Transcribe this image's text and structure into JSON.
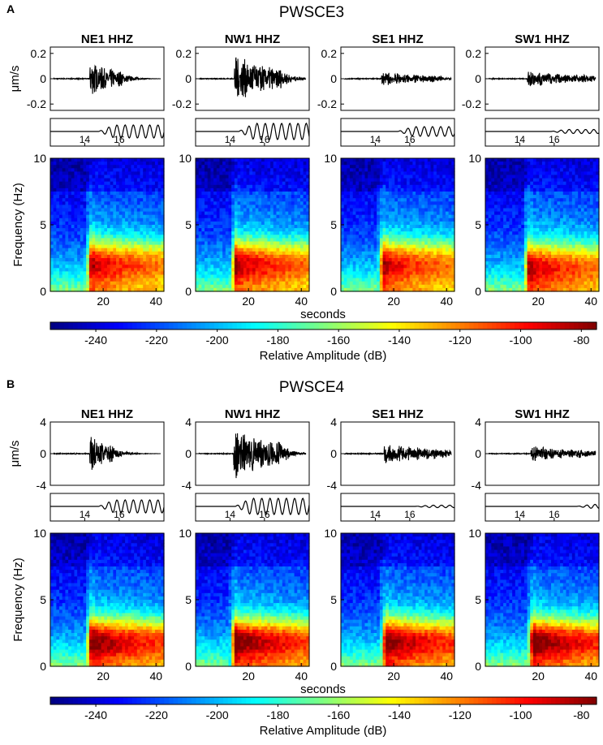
{
  "chart_data": {
    "type": "heatmap",
    "colormap": "jet",
    "panels": [
      {
        "panel_letter": "A",
        "title": "PWSCE3",
        "waveform_ylabel": "μm/s",
        "waveform_ylim": [
          -0.25,
          0.25
        ],
        "waveform_yticks": [
          0.2,
          0,
          -0.2
        ],
        "waveform_ytick_labels": [
          "0.2",
          "0",
          "-0.2"
        ],
        "zoom_xticks": [
          14,
          16
        ],
        "zoom_xtick_labels": [
          "14",
          "16"
        ],
        "spectrogram_ylabel": "Frequency (Hz)",
        "spectrogram_ylim": [
          0,
          10
        ],
        "spectrogram_yticks": [
          10,
          5,
          0
        ],
        "spectrogram_ytick_labels": [
          "10",
          "5",
          "0"
        ],
        "spectrogram_xlim": [
          0,
          43
        ],
        "spectrogram_xticks": [
          20,
          40
        ],
        "spectrogram_xtick_labels": [
          "20",
          "40"
        ],
        "xlabel": "seconds",
        "colorbar_label": "Relative Amplitude  (dB)",
        "colorbar_range": [
          -255,
          -75
        ],
        "colorbar_ticks": [
          -240,
          -220,
          -200,
          -180,
          -160,
          -140,
          -120,
          -100,
          -80
        ],
        "colorbar_tick_labels": [
          "-240",
          "-220",
          "-200",
          "-180",
          "-160",
          "-140",
          "-120",
          "-100",
          "-80"
        ],
        "stations": [
          {
            "name": "NE1 HHZ",
            "onset_s": 14.5,
            "peak_amplitude": 0.15,
            "decay_s": 8,
            "zoom_amplitude": 0.8,
            "spec_intensity": 0.78,
            "spec_peak_hz": 2.2
          },
          {
            "name": "NW1 HHZ",
            "onset_s": 14.2,
            "peak_amplitude": 0.2,
            "decay_s": 12,
            "zoom_amplitude": 1.0,
            "spec_intensity": 0.82,
            "spec_peak_hz": 2.2
          },
          {
            "name": "SE1 HHZ",
            "onset_s": 15.0,
            "peak_amplitude": 0.06,
            "decay_s": 14,
            "zoom_amplitude": 0.6,
            "spec_intensity": 0.78,
            "spec_peak_hz": 2.2
          },
          {
            "name": "SW1 HHZ",
            "onset_s": 15.5,
            "peak_amplitude": 0.07,
            "decay_s": 16,
            "zoom_amplitude": 0.25,
            "spec_intensity": 0.76,
            "spec_peak_hz": 2.0
          }
        ]
      },
      {
        "panel_letter": "B",
        "title": "PWSCE4",
        "waveform_ylabel": "μm/s",
        "waveform_ylim": [
          -4,
          4
        ],
        "waveform_yticks": [
          4,
          0,
          -4
        ],
        "waveform_ytick_labels": [
          "4",
          "0",
          "-4"
        ],
        "zoom_xticks": [
          14,
          16
        ],
        "zoom_xtick_labels": [
          "14",
          "16"
        ],
        "spectrogram_ylabel": "Frequency (Hz)",
        "spectrogram_ylim": [
          0,
          10
        ],
        "spectrogram_yticks": [
          10,
          5,
          0
        ],
        "spectrogram_ytick_labels": [
          "10",
          "5",
          "0"
        ],
        "spectrogram_xlim": [
          0,
          43
        ],
        "spectrogram_xticks": [
          20,
          40
        ],
        "spectrogram_xtick_labels": [
          "20",
          "40"
        ],
        "xlabel": "seconds",
        "colorbar_label": "Relative Amplitude  (dB)",
        "colorbar_range": [
          -255,
          -75
        ],
        "colorbar_ticks": [
          -240,
          -220,
          -200,
          -180,
          -160,
          -140,
          -120,
          -100,
          -80
        ],
        "colorbar_tick_labels": [
          "-240",
          "-220",
          "-200",
          "-180",
          "-160",
          "-140",
          "-120",
          "-100",
          "-80"
        ],
        "stations": [
          {
            "name": "NE1 HHZ",
            "onset_s": 14.5,
            "peak_amplitude": 2.6,
            "decay_s": 6,
            "zoom_amplitude": 0.8,
            "spec_intensity": 0.9,
            "spec_peak_hz": 2.0
          },
          {
            "name": "NW1 HHZ",
            "onset_s": 14.0,
            "peak_amplitude": 3.6,
            "decay_s": 12,
            "zoom_amplitude": 1.0,
            "spec_intensity": 0.92,
            "spec_peak_hz": 2.0
          },
          {
            "name": "SE1 HHZ",
            "onset_s": 16.0,
            "peak_amplitude": 1.4,
            "decay_s": 16,
            "zoom_amplitude": 0.15,
            "spec_intensity": 0.9,
            "spec_peak_hz": 2.0
          },
          {
            "name": "SW1 HHZ",
            "onset_s": 17.0,
            "peak_amplitude": 1.0,
            "decay_s": 18,
            "zoom_amplitude": 0.25,
            "spec_intensity": 0.92,
            "spec_peak_hz": 2.0
          }
        ]
      }
    ]
  }
}
